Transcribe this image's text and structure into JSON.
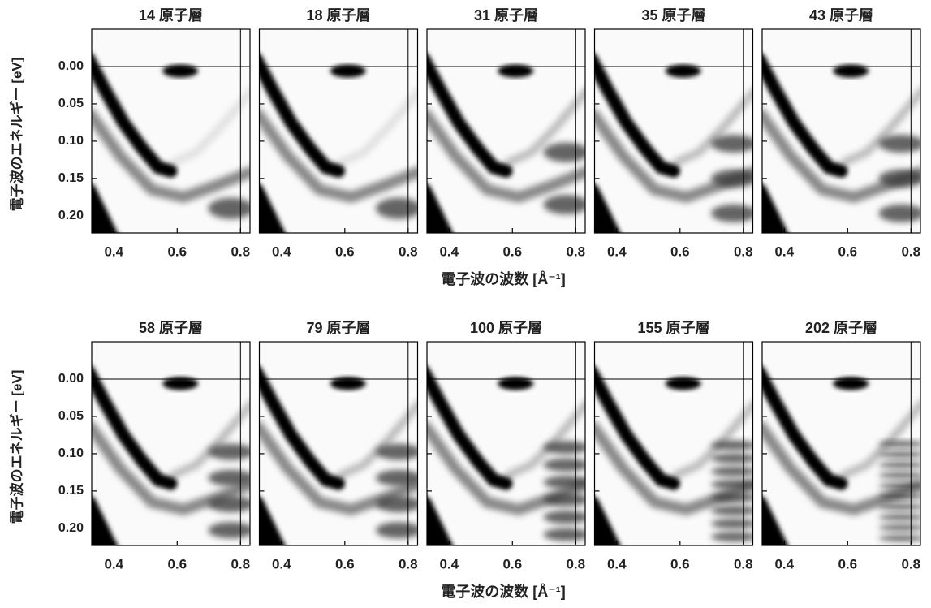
{
  "chart_data": [
    {
      "type": "image",
      "title": "14 原子層",
      "xlim": [
        0.33,
        0.83
      ],
      "ylim": [
        -0.05,
        0.223
      ],
      "y_inverted": true,
      "xticks": [
        0.4,
        0.6,
        0.8
      ],
      "yticks": [
        {
          "value": 0,
          "label": "0.00"
        },
        {
          "value": 0.05,
          "label": "0.05"
        },
        {
          "value": 0.1,
          "label": "0.10"
        },
        {
          "value": 0.15,
          "label": "0.15"
        },
        {
          "value": 0.2,
          "label": "0.20"
        }
      ],
      "vline": 0.8,
      "hline": 0
    },
    {
      "type": "image",
      "title": "18 原子層",
      "xlim": [
        0.33,
        0.83
      ],
      "ylim": [
        -0.05,
        0.223
      ],
      "y_inverted": true,
      "xticks": [
        0.4,
        0.6,
        0.8
      ],
      "yticks": [
        0,
        0.05,
        0.1,
        0.15,
        0.2
      ],
      "vline": 0.8,
      "hline": 0
    },
    {
      "type": "image",
      "title": "31 原子層",
      "xlim": [
        0.33,
        0.83
      ],
      "ylim": [
        -0.05,
        0.223
      ],
      "y_inverted": true,
      "xticks": [
        0.4,
        0.6,
        0.8
      ],
      "yticks": [
        0,
        0.05,
        0.1,
        0.15,
        0.2
      ],
      "vline": 0.8,
      "hline": 0
    },
    {
      "type": "image",
      "title": "35 原子層",
      "xlim": [
        0.33,
        0.83
      ],
      "ylim": [
        -0.05,
        0.223
      ],
      "y_inverted": true,
      "xticks": [
        0.4,
        0.6,
        0.8
      ],
      "yticks": [
        0,
        0.05,
        0.1,
        0.15,
        0.2
      ],
      "vline": 0.8,
      "hline": 0
    },
    {
      "type": "image",
      "title": "43 原子層",
      "xlim": [
        0.33,
        0.83
      ],
      "ylim": [
        -0.05,
        0.223
      ],
      "y_inverted": true,
      "xticks": [
        0.4,
        0.6,
        0.8
      ],
      "yticks": [
        0,
        0.05,
        0.1,
        0.15,
        0.2
      ],
      "vline": 0.8,
      "hline": 0
    },
    {
      "type": "image",
      "title": "58 原子層",
      "xlim": [
        0.33,
        0.83
      ],
      "ylim": [
        -0.05,
        0.223
      ],
      "y_inverted": true,
      "xticks": [
        0.4,
        0.6,
        0.8
      ],
      "yticks": [
        {
          "value": 0,
          "label": "0.00"
        },
        {
          "value": 0.05,
          "label": "0.05"
        },
        {
          "value": 0.1,
          "label": "0.10"
        },
        {
          "value": 0.15,
          "label": "0.15"
        },
        {
          "value": 0.2,
          "label": "0.20"
        }
      ],
      "vline": 0.8,
      "hline": 0
    },
    {
      "type": "image",
      "title": "79 原子層",
      "xlim": [
        0.33,
        0.83
      ],
      "ylim": [
        -0.05,
        0.223
      ],
      "y_inverted": true,
      "xticks": [
        0.4,
        0.6,
        0.8
      ],
      "yticks": [
        0,
        0.05,
        0.1,
        0.15,
        0.2
      ],
      "vline": 0.8,
      "hline": 0
    },
    {
      "type": "image",
      "title": "100 原子層",
      "xlim": [
        0.33,
        0.83
      ],
      "ylim": [
        -0.05,
        0.223
      ],
      "y_inverted": true,
      "xticks": [
        0.4,
        0.6,
        0.8
      ],
      "yticks": [
        0,
        0.05,
        0.1,
        0.15,
        0.2
      ],
      "vline": 0.8,
      "hline": 0
    },
    {
      "type": "image",
      "title": "155 原子層",
      "xlim": [
        0.33,
        0.83
      ],
      "ylim": [
        -0.05,
        0.223
      ],
      "y_inverted": true,
      "xticks": [
        0.4,
        0.6,
        0.8
      ],
      "yticks": [
        0,
        0.05,
        0.1,
        0.15,
        0.2
      ],
      "vline": 0.8,
      "hline": 0
    },
    {
      "type": "image",
      "title": "202 原子層",
      "xlim": [
        0.33,
        0.83
      ],
      "ylim": [
        -0.05,
        0.223
      ],
      "y_inverted": true,
      "xticks": [
        0.4,
        0.6,
        0.8
      ],
      "yticks": [
        0,
        0.05,
        0.1,
        0.15,
        0.2
      ],
      "vline": 0.8,
      "hline": 0
    }
  ],
  "rows": [
    {
      "ylabel": "電子波のエネルギー [eV]",
      "xlabel": "電子波の波数 [Å⁻¹]"
    },
    {
      "ylabel": "電子波のエネルギー [eV]",
      "xlabel": "電子波の波数 [Å⁻¹]"
    }
  ]
}
